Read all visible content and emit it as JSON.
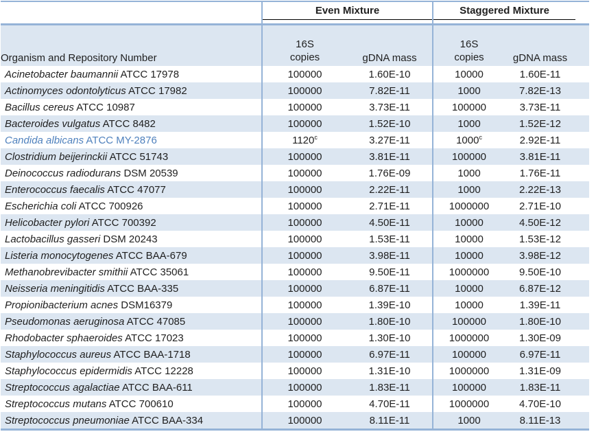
{
  "colors": {
    "stripe": "#DCE6F1",
    "border_blue": "#95B3D7",
    "header_underline": "#000000",
    "highlight_text": "#4F81BD",
    "text": "#1F1F1F"
  },
  "group_headers": {
    "even": "Even Mixture",
    "staggered": "Staggered Mixture"
  },
  "column_headers": {
    "organism": "Organism and Repository Number",
    "copies_top": "16S",
    "copies_bottom": "copies",
    "gdna": "gDNA mass"
  },
  "rows": [
    {
      "name": "Acinetobacter baumannii",
      "repo": "ATCC 17978",
      "even_copies": "100000",
      "even_gdna": "1.60E-10",
      "stag_copies": "10000",
      "stag_gdna": "1.60E-11"
    },
    {
      "name": "Actinomyces odontolyticus",
      "repo": "ATCC 17982",
      "even_copies": "100000",
      "even_gdna": "7.82E-11",
      "stag_copies": "1000",
      "stag_gdna": "7.82E-13"
    },
    {
      "name": "Bacillus cereus",
      "repo": "ATCC 10987",
      "even_copies": "100000",
      "even_gdna": "3.73E-11",
      "stag_copies": "100000",
      "stag_gdna": "3.73E-11"
    },
    {
      "name": "Bacteroides vulgatus",
      "repo": "ATCC 8482",
      "even_copies": "100000",
      "even_gdna": "1.52E-10",
      "stag_copies": "1000",
      "stag_gdna": "1.52E-12"
    },
    {
      "name": "Candida albicans",
      "repo": "ATCC MY-2876",
      "even_copies": "1120",
      "even_copies_sup": "c",
      "even_gdna": "3.27E-11",
      "stag_copies": "1000",
      "stag_copies_sup": "c",
      "stag_gdna": "2.92E-11",
      "highlight": true
    },
    {
      "name": "Clostridium beijerinckii",
      "repo": "ATCC 51743",
      "even_copies": "100000",
      "even_gdna": "3.81E-11",
      "stag_copies": "100000",
      "stag_gdna": "3.81E-11"
    },
    {
      "name": "Deinococcus radiodurans",
      "repo": "DSM 20539",
      "even_copies": "100000",
      "even_gdna": "1.76E-09",
      "stag_copies": "1000",
      "stag_gdna": "1.76E-11"
    },
    {
      "name": "Enterococcus faecalis",
      "repo": "ATCC 47077",
      "even_copies": "100000",
      "even_gdna": "2.22E-11",
      "stag_copies": "1000",
      "stag_gdna": "2.22E-13"
    },
    {
      "name": "Escherichia coli",
      "repo": "ATCC 700926",
      "even_copies": "100000",
      "even_gdna": "2.71E-11",
      "stag_copies": "1000000",
      "stag_gdna": "2.71E-10"
    },
    {
      "name": "Helicobacter pylori",
      "repo": "ATCC 700392",
      "even_copies": "100000",
      "even_gdna": "4.50E-11",
      "stag_copies": "10000",
      "stag_gdna": "4.50E-12"
    },
    {
      "name": "Lactobacillus gasseri",
      "repo": "DSM 20243",
      "even_copies": "100000",
      "even_gdna": "1.53E-11",
      "stag_copies": "10000",
      "stag_gdna": "1.53E-12"
    },
    {
      "name": "Listeria monocytogenes",
      "repo": "ATCC BAA-679",
      "even_copies": "100000",
      "even_gdna": "3.98E-11",
      "stag_copies": "10000",
      "stag_gdna": "3.98E-12"
    },
    {
      "name": "Methanobrevibacter smithii",
      "repo": "ATCC 35061",
      "even_copies": "100000",
      "even_gdna": "9.50E-11",
      "stag_copies": "1000000",
      "stag_gdna": "9.50E-10"
    },
    {
      "name": "Neisseria meningitidis",
      "repo": "ATCC BAA-335",
      "even_copies": "100000",
      "even_gdna": "6.87E-11",
      "stag_copies": "10000",
      "stag_gdna": "6.87E-12"
    },
    {
      "name": "Propionibacterium acnes",
      "repo": "DSM16379",
      "even_copies": "100000",
      "even_gdna": "1.39E-10",
      "stag_copies": "10000",
      "stag_gdna": "1.39E-11"
    },
    {
      "name": "Pseudomonas aeruginosa",
      "repo": "ATCC 47085",
      "even_copies": "100000",
      "even_gdna": "1.80E-10",
      "stag_copies": "100000",
      "stag_gdna": "1.80E-10"
    },
    {
      "name": "Rhodobacter sphaeroides",
      "repo": "ATCC 17023",
      "even_copies": "100000",
      "even_gdna": "1.30E-10",
      "stag_copies": "1000000",
      "stag_gdna": "1.30E-09"
    },
    {
      "name": "Staphylococcus aureus",
      "repo": "ATCC BAA-1718",
      "even_copies": "100000",
      "even_gdna": "6.97E-11",
      "stag_copies": "100000",
      "stag_gdna": "6.97E-11"
    },
    {
      "name": "Staphylococcus epidermidis",
      "repo": "ATCC 12228",
      "even_copies": "100000",
      "even_gdna": "1.31E-10",
      "stag_copies": "1000000",
      "stag_gdna": "1.31E-09"
    },
    {
      "name": "Streptococcus agalactiae",
      "repo": "ATCC BAA-611",
      "even_copies": "100000",
      "even_gdna": "1.83E-11",
      "stag_copies": "100000",
      "stag_gdna": "1.83E-11"
    },
    {
      "name": "Streptococcus mutans",
      "repo": "ATCC 700610",
      "even_copies": "100000",
      "even_gdna": "4.70E-11",
      "stag_copies": "1000000",
      "stag_gdna": "4.70E-10"
    },
    {
      "name": "Streptococcus pneumoniae",
      "repo": "ATCC BAA-334",
      "even_copies": "100000",
      "even_gdna": "8.11E-11",
      "stag_copies": "1000",
      "stag_gdna": "8.11E-13"
    }
  ]
}
